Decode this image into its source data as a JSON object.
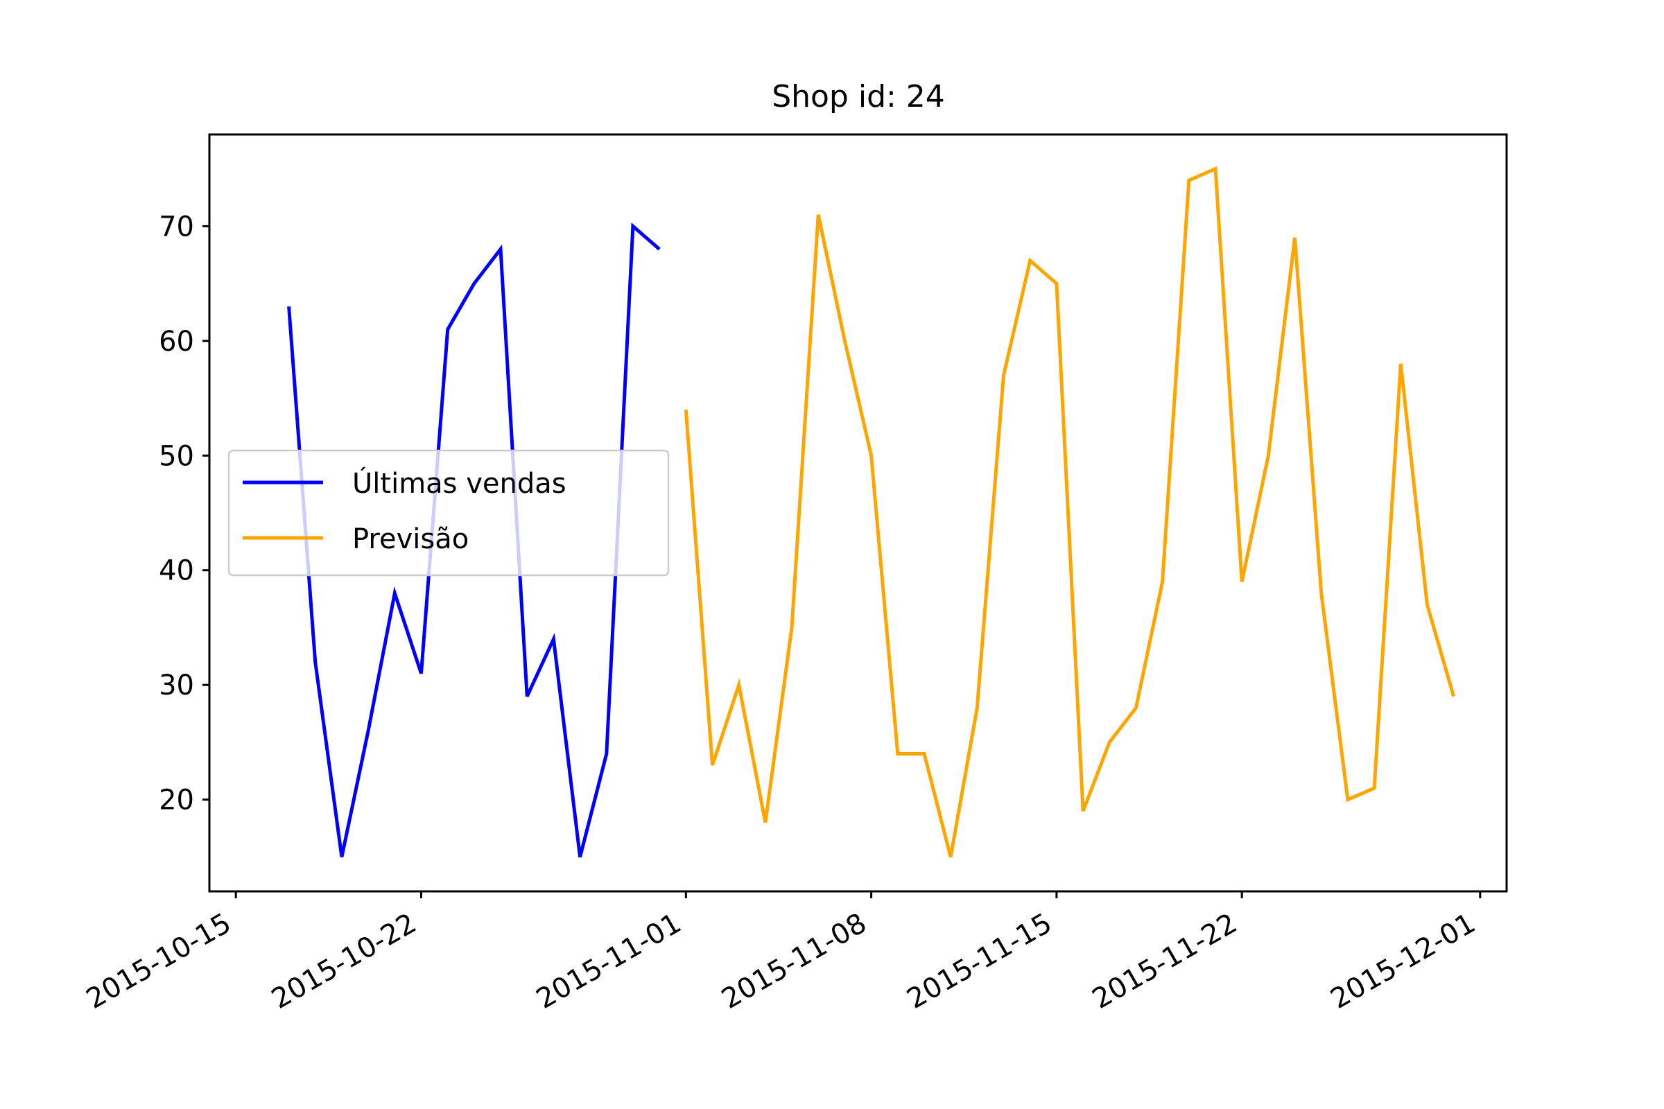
{
  "chart_data": {
    "type": "line",
    "title": "Shop id: 24",
    "xlabel": "",
    "ylabel": "",
    "x_type": "date",
    "xlim": [
      "2015-10-14",
      "2015-12-02"
    ],
    "ylim": [
      12,
      78
    ],
    "x_ticks": [
      "2015-10-15",
      "2015-10-22",
      "2015-11-01",
      "2015-11-08",
      "2015-11-15",
      "2015-11-22",
      "2015-12-01"
    ],
    "y_ticks": [
      20,
      30,
      40,
      50,
      60,
      70
    ],
    "grid": false,
    "legend": {
      "placement": "center-left"
    },
    "series": [
      {
        "name": "Últimas vendas",
        "color": "#0000ff",
        "x": [
          "2015-10-17",
          "2015-10-18",
          "2015-10-19",
          "2015-10-20",
          "2015-10-21",
          "2015-10-22",
          "2015-10-23",
          "2015-10-24",
          "2015-10-25",
          "2015-10-26",
          "2015-10-27",
          "2015-10-28",
          "2015-10-29",
          "2015-10-30",
          "2015-10-31",
          "2015-11-01"
        ],
        "y": [
          63,
          32,
          15,
          26,
          38,
          31,
          61,
          65,
          68,
          29,
          34,
          15,
          24,
          70,
          68,
          null
        ]
      },
      {
        "name": "Previsão",
        "color": "#ffa500",
        "x": [
          "2015-11-01",
          "2015-11-02",
          "2015-11-03",
          "2015-11-04",
          "2015-11-05",
          "2015-11-06",
          "2015-11-07",
          "2015-11-08",
          "2015-11-09",
          "2015-11-10",
          "2015-11-11",
          "2015-11-12",
          "2015-11-13",
          "2015-11-14",
          "2015-11-15",
          "2015-11-16",
          "2015-11-17",
          "2015-11-18",
          "2015-11-19",
          "2015-11-20",
          "2015-11-21",
          "2015-11-22",
          "2015-11-23",
          "2015-11-24",
          "2015-11-25",
          "2015-11-26",
          "2015-11-27",
          "2015-11-28",
          "2015-11-29",
          "2015-11-30"
        ],
        "y": [
          54,
          23,
          30,
          18,
          35,
          71,
          60,
          50,
          24,
          24,
          15,
          28,
          57,
          67,
          65,
          19,
          25,
          28,
          39,
          74,
          75,
          39,
          50,
          69,
          38,
          20,
          21,
          58,
          37,
          29
        ]
      }
    ]
  }
}
